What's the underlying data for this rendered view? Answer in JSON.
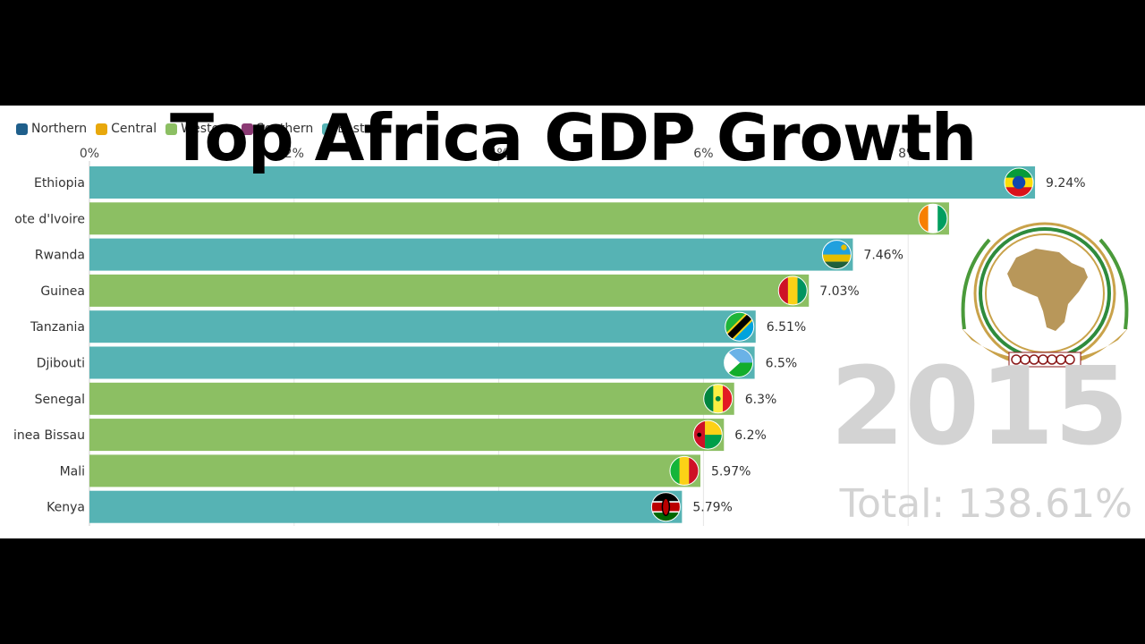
{
  "title": "Top Africa GDP Growth",
  "year": "2015",
  "total": "Total: 138.61%",
  "legend": [
    {
      "label": "Northern",
      "color": "#1f5f8b"
    },
    {
      "label": "Central",
      "color": "#e8a80c"
    },
    {
      "label": "Western",
      "color": "#8cbf63"
    },
    {
      "label": "Southern",
      "color": "#8b3a74"
    },
    {
      "label": "Eastern",
      "color": "#56b3b4"
    }
  ],
  "chart_data": {
    "type": "bar",
    "orientation": "horizontal",
    "xlim": [
      0,
      9.24
    ],
    "x_ticks": [
      "0%",
      "2%",
      "4%",
      "6%",
      "8%"
    ],
    "categories": [
      "Ethiopia",
      "ote d'Ivoire",
      "Rwanda",
      "Guinea",
      "Tanzania",
      "Djibouti",
      "Senegal",
      "inea Bissau",
      "Mali",
      "Kenya"
    ],
    "values": [
      9.24,
      8.4,
      7.46,
      7.03,
      6.51,
      6.5,
      6.3,
      6.2,
      5.97,
      5.79
    ],
    "value_labels": [
      "9.24%",
      "",
      "7.46%",
      "7.03%",
      "6.51%",
      "6.5%",
      "6.3%",
      "6.2%",
      "5.97%",
      "5.79%"
    ],
    "regions": [
      "Eastern",
      "Western",
      "Eastern",
      "Western",
      "Eastern",
      "Eastern",
      "Western",
      "Western",
      "Western",
      "Eastern"
    ],
    "flags": [
      "ethiopia-flag",
      "cote-divoire-flag",
      "rwanda-flag",
      "guinea-flag",
      "tanzania-flag",
      "djibouti-flag",
      "senegal-flag",
      "guinea-bissau-flag",
      "mali-flag",
      "kenya-flag"
    ],
    "region_colors": {
      "Eastern": "#56b3b4",
      "Western": "#8cbf63"
    }
  }
}
